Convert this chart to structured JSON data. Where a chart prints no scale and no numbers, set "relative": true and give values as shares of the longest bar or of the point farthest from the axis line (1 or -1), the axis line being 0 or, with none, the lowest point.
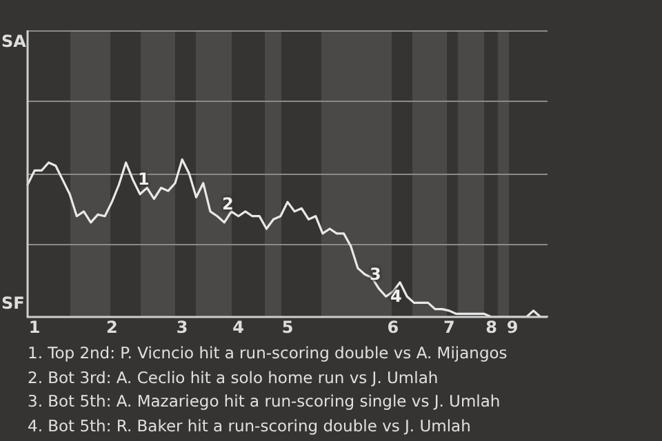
{
  "chart_data": {
    "type": "line",
    "relative": true,
    "categories": [
      null,
      "1",
      null,
      null,
      null,
      null,
      null,
      null,
      null,
      null,
      null,
      null,
      "2",
      null,
      null,
      null,
      null,
      null,
      null,
      null,
      null,
      null,
      "3",
      null,
      null,
      null,
      null,
      null,
      null,
      null,
      "4",
      null,
      null,
      null,
      null,
      null,
      null,
      "5",
      null,
      null,
      null,
      null,
      null,
      null,
      null,
      null,
      null,
      null,
      null,
      null,
      null,
      null,
      "6",
      null,
      null,
      null,
      null,
      null,
      null,
      null,
      "7",
      null,
      null,
      null,
      null,
      null,
      "8",
      null,
      null,
      "9",
      null,
      null,
      null,
      null,
      null
    ],
    "series": [
      {
        "color": "#e8e8e8",
        "values": [
          0.84,
          0.93,
          0.93,
          0.98,
          0.96,
          0.87,
          0.78,
          0.64,
          0.67,
          0.6,
          0.65,
          0.64,
          0.73,
          0.84,
          0.98,
          0.87,
          0.78,
          0.82,
          0.75,
          0.82,
          0.8,
          0.85,
          1,
          0.91,
          0.76,
          0.85,
          0.67,
          0.64,
          0.6,
          0.67,
          0.64,
          0.67,
          0.64,
          0.64,
          0.56,
          0.62,
          0.64,
          0.73,
          0.67,
          0.69,
          0.62,
          0.64,
          0.53,
          0.56,
          0.53,
          0.53,
          0.45,
          0.31,
          0.27,
          0.25,
          0.18,
          0.13,
          0.16,
          0.22,
          0.13,
          0.09,
          0.09,
          0.09,
          0.05,
          0.05,
          0.04,
          0.02,
          0.02,
          0.02,
          0.02,
          0.02,
          0,
          0,
          0,
          0,
          0,
          0,
          0.04,
          0,
          0
        ]
      }
    ],
    "legend": false,
    "marker": "none",
    "line_style": "solid",
    "ref_lines": [
      {
        "axis": "y",
        "value": 0.46,
        "color": "#8a8a8a"
      },
      {
        "axis": "y",
        "value": 0.91,
        "color": "#8a8a8a"
      },
      {
        "axis": "y",
        "value": 1.37,
        "color": "#8a8a8a"
      },
      {
        "axis": "y",
        "value": 1.82,
        "color": "#8a8a8a"
      }
    ],
    "annotations": [
      "SA",
      "SF",
      "1",
      "2",
      "3",
      "4",
      "1. Top 2nd: P. Vicncio hit a run-scoring double vs A. Mijangos",
      "2. Bot 3rd: A. Ceclio hit a solo home run vs J. Umlah",
      "3. Bot 5th: A. Mazariego hit a run-scoring single vs J. Umlah",
      "4. Bot 5th: R. Baker hit a run-scoring double vs J. Umlah"
    ]
  }
}
